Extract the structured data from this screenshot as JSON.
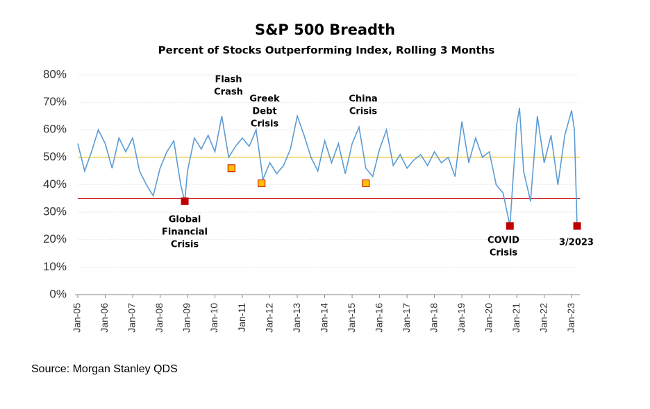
{
  "chart_data": {
    "type": "line",
    "title": "S&P 500 Breadth",
    "subtitle": "Percent of Stocks Outperforming Index, Rolling 3 Months",
    "source": "Source: Morgan Stanley QDS",
    "xlim": [
      2005,
      2023.3
    ],
    "xticks": [
      {
        "value": 2005,
        "label": "Jan-05"
      },
      {
        "value": 2006,
        "label": "Jan-06"
      },
      {
        "value": 2007,
        "label": "Jan-07"
      },
      {
        "value": 2008,
        "label": "Jan-08"
      },
      {
        "value": 2009,
        "label": "Jan-09"
      },
      {
        "value": 2010,
        "label": "Jan-10"
      },
      {
        "value": 2011,
        "label": "Jan-11"
      },
      {
        "value": 2012,
        "label": "Jan-12"
      },
      {
        "value": 2013,
        "label": "Jan-13"
      },
      {
        "value": 2014,
        "label": "Jan-14"
      },
      {
        "value": 2015,
        "label": "Jan-15"
      },
      {
        "value": 2016,
        "label": "Jan-16"
      },
      {
        "value": 2017,
        "label": "Jan-17"
      },
      {
        "value": 2018,
        "label": "Jan-18"
      },
      {
        "value": 2019,
        "label": "Jan-19"
      },
      {
        "value": 2020,
        "label": "Jan-20"
      },
      {
        "value": 2021,
        "label": "Jan-21"
      },
      {
        "value": 2022,
        "label": "Jan-22"
      },
      {
        "value": 2023,
        "label": "Jan-23"
      }
    ],
    "ylim": [
      0,
      80
    ],
    "yticks": [
      {
        "value": 0,
        "label": "0%"
      },
      {
        "value": 10,
        "label": "10%"
      },
      {
        "value": 20,
        "label": "20%"
      },
      {
        "value": 30,
        "label": "30%"
      },
      {
        "value": 40,
        "label": "40%"
      },
      {
        "value": 50,
        "label": "50%"
      },
      {
        "value": 60,
        "label": "60%"
      },
      {
        "value": 70,
        "label": "70%"
      },
      {
        "value": 80,
        "label": "80%"
      }
    ],
    "grid": true,
    "x": [
      2005.0,
      2005.25,
      2005.5,
      2005.75,
      2006.0,
      2006.25,
      2006.5,
      2006.75,
      2007.0,
      2007.25,
      2007.5,
      2007.75,
      2008.0,
      2008.25,
      2008.5,
      2008.75,
      2008.9,
      2009.0,
      2009.25,
      2009.5,
      2009.75,
      2010.0,
      2010.25,
      2010.5,
      2010.75,
      2011.0,
      2011.25,
      2011.5,
      2011.75,
      2012.0,
      2012.25,
      2012.5,
      2012.75,
      2013.0,
      2013.25,
      2013.5,
      2013.75,
      2014.0,
      2014.25,
      2014.5,
      2014.75,
      2015.0,
      2015.25,
      2015.5,
      2015.75,
      2016.0,
      2016.25,
      2016.5,
      2016.75,
      2017.0,
      2017.25,
      2017.5,
      2017.75,
      2018.0,
      2018.25,
      2018.5,
      2018.75,
      2019.0,
      2019.25,
      2019.5,
      2019.75,
      2020.0,
      2020.25,
      2020.5,
      2020.75,
      2021.0,
      2021.1,
      2021.25,
      2021.5,
      2021.75,
      2022.0,
      2022.25,
      2022.5,
      2022.75,
      2023.0,
      2023.1,
      2023.2
    ],
    "series": [
      {
        "color": "#5b9bd5",
        "values": [
          55,
          45,
          52,
          60,
          55,
          46,
          57,
          52,
          57,
          45,
          40,
          36,
          46,
          52,
          56,
          40,
          34,
          45,
          57,
          53,
          58,
          52,
          65,
          50,
          54,
          57,
          54,
          60,
          42,
          48,
          44,
          47,
          53,
          65,
          58,
          50,
          45,
          56,
          48,
          55,
          44,
          55,
          61,
          46,
          43,
          53,
          60,
          47,
          51,
          46,
          49,
          51,
          47,
          52,
          48,
          50,
          43,
          63,
          48,
          57,
          50,
          52,
          40,
          37,
          25,
          62,
          68,
          45,
          34,
          65,
          48,
          58,
          40,
          58,
          67,
          60,
          25
        ]
      }
    ],
    "reference_lines": [
      {
        "value": 50,
        "color": "#e6b800"
      },
      {
        "value": 35,
        "color": "#c00000"
      }
    ],
    "annotations": [
      {
        "lines": [
          "Global",
          "Financial",
          "Crisis"
        ],
        "x": 2008.9,
        "y": 34,
        "color": "#c00000"
      },
      {
        "lines": [
          "Flash",
          "Crash"
        ],
        "x": 2010.6,
        "y": 46,
        "color": "#ffc000"
      },
      {
        "lines": [
          "Greek",
          "Debt",
          "Crisis"
        ],
        "x": 2011.7,
        "y": 40.5,
        "color": "#ffc000"
      },
      {
        "lines": [
          "China",
          "Crisis"
        ],
        "x": 2015.5,
        "y": 40.5,
        "color": "#ffc000"
      },
      {
        "lines": [
          "COVID",
          "Crisis"
        ],
        "x": 2020.75,
        "y": 25,
        "color": "#c00000"
      },
      {
        "lines": [
          "3/2023"
        ],
        "x": 2023.2,
        "y": 25,
        "color": "#c00000"
      }
    ]
  }
}
